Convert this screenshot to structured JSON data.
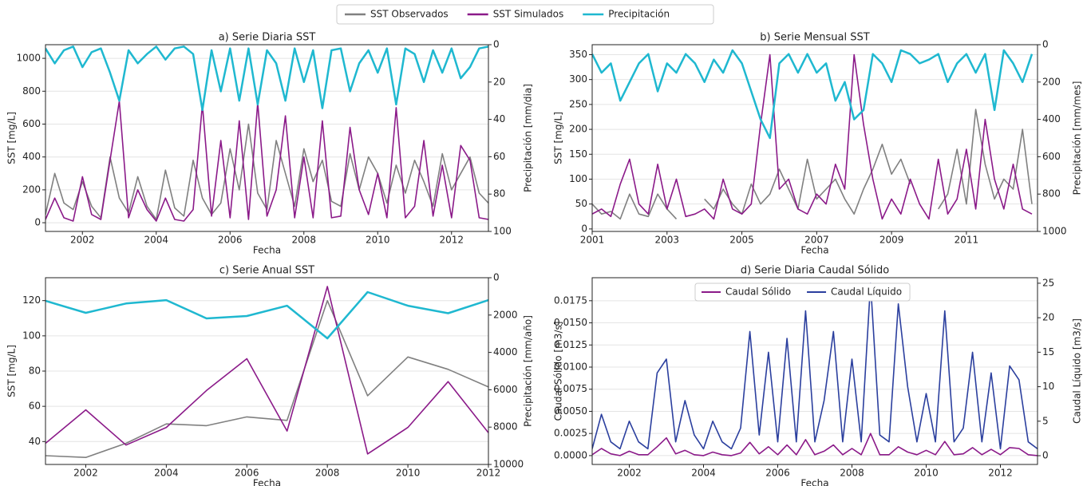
{
  "chart_data": [
    {
      "type": "line",
      "title": "a) Serie Diaria SST",
      "xlabel": "Fecha",
      "ylabel": "SST [mg/L]",
      "y2label": "Precipitación [mm/dia]",
      "x": [
        2001,
        2001.25,
        2001.5,
        2001.75,
        2002,
        2002.25,
        2002.5,
        2002.75,
        2003,
        2003.25,
        2003.5,
        2003.75,
        2004,
        2004.25,
        2004.5,
        2004.75,
        2005,
        2005.25,
        2005.5,
        2005.75,
        2006,
        2006.25,
        2006.5,
        2006.75,
        2007,
        2007.25,
        2007.5,
        2007.75,
        2008,
        2008.25,
        2008.5,
        2008.75,
        2009,
        2009.25,
        2009.5,
        2009.75,
        2010,
        2010.25,
        2010.5,
        2010.75,
        2011,
        2011.25,
        2011.5,
        2011.75,
        2012,
        2012.25,
        2012.5,
        2012.75,
        2013
      ],
      "series": [
        {
          "name": "SST Observados",
          "color": "#808080",
          "values": [
            50,
            300,
            120,
            80,
            250,
            100,
            30,
            400,
            150,
            60,
            280,
            100,
            20,
            320,
            90,
            40,
            380,
            150,
            50,
            120,
            450,
            200,
            600,
            180,
            80,
            500,
            300,
            100,
            450,
            250,
            380,
            130,
            100,
            420,
            200,
            400,
            300,
            120,
            350,
            180,
            380,
            250,
            100,
            420,
            200,
            300,
            400,
            180,
            120
          ]
        },
        {
          "name": "SST Simulados",
          "color": "#8b1a89",
          "values": [
            20,
            150,
            30,
            10,
            280,
            50,
            20,
            380,
            740,
            30,
            200,
            80,
            10,
            150,
            20,
            10,
            80,
            720,
            40,
            500,
            30,
            620,
            20,
            730,
            40,
            200,
            650,
            30,
            400,
            30,
            620,
            30,
            40,
            580,
            200,
            50,
            300,
            30,
            700,
            30,
            100,
            500,
            40,
            350,
            30,
            470,
            380,
            30,
            20
          ]
        },
        {
          "name": "Precipitación",
          "color": "#1fb8d0",
          "axis": "y2",
          "values": [
            2,
            10,
            3,
            1,
            12,
            4,
            2,
            15,
            30,
            3,
            10,
            5,
            1,
            8,
            2,
            1,
            5,
            35,
            3,
            25,
            2,
            30,
            2,
            32,
            3,
            10,
            30,
            2,
            20,
            3,
            34,
            3,
            2,
            25,
            10,
            3,
            15,
            2,
            32,
            2,
            5,
            20,
            3,
            15,
            2,
            18,
            12,
            2,
            1
          ]
        }
      ],
      "xlim": [
        2001,
        2013
      ],
      "xticks": [
        2002,
        2004,
        2006,
        2008,
        2010,
        2012
      ],
      "ylim": [
        -53,
        1083
      ],
      "yticks": [
        0,
        200,
        400,
        600,
        800,
        1000
      ],
      "y2lim": [
        100,
        0
      ],
      "y2ticks": [
        0,
        20,
        40,
        60,
        80,
        100
      ],
      "grid": true
    },
    {
      "type": "line",
      "title": "b) Serie Mensual SST",
      "xlabel": "Fecha",
      "ylabel": "SST [mg/L]",
      "y2label": "Precipitación [mm/mes]",
      "x": [
        2001,
        2001.25,
        2001.5,
        2001.75,
        2002,
        2002.25,
        2002.5,
        2002.75,
        2003,
        2003.25,
        2003.5,
        2003.75,
        2004,
        2004.25,
        2004.5,
        2004.75,
        2005,
        2005.25,
        2005.5,
        2005.75,
        2006,
        2006.25,
        2006.5,
        2006.75,
        2007,
        2007.25,
        2007.5,
        2007.75,
        2008,
        2008.25,
        2008.5,
        2008.75,
        2009,
        2009.25,
        2009.5,
        2009.75,
        2010,
        2010.25,
        2010.5,
        2010.75,
        2011,
        2011.25,
        2011.5,
        2011.75,
        2012,
        2012.25,
        2012.5,
        2012.75
      ],
      "series": [
        {
          "color": "#808080",
          "values": [
            50,
            30,
            35,
            20,
            70,
            30,
            25,
            70,
            40,
            20,
            null,
            null,
            60,
            40,
            80,
            50,
            30,
            90,
            50,
            70,
            120,
            80,
            40,
            140,
            60,
            80,
            100,
            60,
            30,
            80,
            120,
            170,
            110,
            140,
            90,
            null,
            null,
            40,
            70,
            160,
            50,
            240,
            130,
            60,
            100,
            80,
            200,
            50
          ]
        },
        {
          "color": "#8b1a89",
          "values": [
            30,
            40,
            25,
            90,
            140,
            50,
            30,
            130,
            40,
            100,
            25,
            30,
            40,
            20,
            100,
            40,
            30,
            50,
            210,
            350,
            80,
            100,
            40,
            30,
            70,
            50,
            130,
            80,
            350,
            210,
            100,
            20,
            60,
            30,
            100,
            50,
            20,
            140,
            30,
            60,
            160,
            40,
            220,
            100,
            40,
            130,
            40,
            30
          ]
        },
        {
          "color": "#1fb8d0",
          "axis": "y2",
          "values": [
            50,
            150,
            100,
            300,
            200,
            100,
            50,
            250,
            100,
            150,
            50,
            100,
            200,
            80,
            150,
            30,
            100,
            250,
            400,
            500,
            100,
            50,
            150,
            50,
            150,
            100,
            300,
            200,
            400,
            350,
            50,
            100,
            200,
            30,
            50,
            100,
            80,
            50,
            200,
            100,
            50,
            150,
            50,
            350,
            30,
            100,
            200,
            50
          ]
        }
      ],
      "xlim": [
        2001,
        2012.9
      ],
      "xticks": [
        2001,
        2003,
        2005,
        2007,
        2009,
        2011
      ],
      "ylim": [
        -5,
        370
      ],
      "yticks": [
        0,
        50,
        100,
        150,
        200,
        250,
        300,
        350
      ],
      "y2lim": [
        1000,
        0
      ],
      "y2ticks": [
        0,
        200,
        400,
        600,
        800,
        1000
      ],
      "grid": true
    },
    {
      "type": "line",
      "title": "c) Serie Anual SST",
      "xlabel": "Fecha",
      "ylabel": "SST [mg/L]",
      "y2label": "Precipitación [mm/año]",
      "x": [
        2001,
        2002,
        2003,
        2004,
        2005,
        2006,
        2007,
        2008,
        2009,
        2010,
        2011,
        2012
      ],
      "series": [
        {
          "color": "#808080",
          "values": [
            32,
            31,
            39,
            50,
            49,
            54,
            52,
            120,
            66,
            88,
            81,
            71
          ]
        },
        {
          "color": "#8b1a89",
          "values": [
            39,
            58,
            38,
            48,
            69,
            87,
            46,
            128,
            33,
            48,
            74,
            45
          ]
        },
        {
          "color": "#1fb8d0",
          "axis": "y2",
          "values": [
            1240,
            1880,
            1380,
            1200,
            2180,
            2050,
            1500,
            3250,
            770,
            1500,
            1900,
            1200
          ]
        }
      ],
      "xlim": [
        2001,
        2012
      ],
      "xticks": [
        2002,
        2004,
        2006,
        2008,
        2010,
        2012
      ],
      "ylim": [
        27,
        133
      ],
      "yticks": [
        40,
        60,
        80,
        100,
        120
      ],
      "y2lim": [
        10000,
        0
      ],
      "y2ticks": [
        0,
        2000,
        4000,
        6000,
        8000,
        10000
      ],
      "grid": true
    },
    {
      "type": "line",
      "title": "d) Serie Diaria Caudal Sólido",
      "xlabel": "Fecha",
      "ylabel": "Caudal Sólido [m3/s]",
      "y2label": "Caudal Líquido [m3/s]",
      "x": [
        2001,
        2001.25,
        2001.5,
        2001.75,
        2002,
        2002.25,
        2002.5,
        2002.75,
        2003,
        2003.25,
        2003.5,
        2003.75,
        2004,
        2004.25,
        2004.5,
        2004.75,
        2005,
        2005.25,
        2005.5,
        2005.75,
        2006,
        2006.25,
        2006.5,
        2006.75,
        2007,
        2007.25,
        2007.5,
        2007.75,
        2008,
        2008.25,
        2008.5,
        2008.75,
        2009,
        2009.25,
        2009.5,
        2009.75,
        2010,
        2010.25,
        2010.5,
        2010.75,
        2011,
        2011.25,
        2011.5,
        2011.75,
        2012,
        2012.25,
        2012.5,
        2012.75,
        2013
      ],
      "series": [
        {
          "name": "Caudal Sólido",
          "color": "#8b1a89",
          "values": [
            0.0001,
            0.0008,
            0.0002,
            0,
            0.0005,
            0.0001,
            0.0001,
            0.001,
            0.002,
            0.0002,
            0.0006,
            0.0001,
            0,
            0.0004,
            0.0001,
            0,
            0.0003,
            0.0015,
            0.0002,
            0.001,
            0.0001,
            0.0012,
            0.0001,
            0.0018,
            0.0001,
            0.0005,
            0.0012,
            0.0001,
            0.0008,
            0.0001,
            0.0025,
            0.0001,
            0.0001,
            0.001,
            0.0004,
            0.0001,
            0.0006,
            0.0001,
            0.0016,
            0.0001,
            0.0002,
            0.0009,
            0.0001,
            0.0007,
            0.0001,
            0.0009,
            0.0008,
            0.0001,
            0
          ]
        },
        {
          "name": "Caudal Líquido",
          "color": "#2b3f9e",
          "axis": "y2",
          "values": [
            1,
            6,
            2,
            1,
            5,
            2,
            1,
            12,
            14,
            2,
            8,
            3,
            1,
            5,
            2,
            1,
            4,
            18,
            3,
            15,
            2,
            17,
            2,
            21,
            2,
            8,
            18,
            2,
            14,
            2,
            25,
            3,
            2,
            22,
            10,
            2,
            9,
            2,
            21,
            2,
            4,
            15,
            2,
            12,
            1,
            13,
            11,
            2,
            1
          ]
        }
      ],
      "xlim": [
        2001,
        2013
      ],
      "xticks": [
        2002,
        2004,
        2006,
        2008,
        2010,
        2012
      ],
      "ylim": [
        -0.001,
        0.0201
      ],
      "yticks": [
        {
          "value": 0,
          "label": "0.0000"
        },
        {
          "value": 0.0025,
          "label": "0.0025"
        },
        {
          "value": 0.005,
          "label": "0.0050"
        },
        {
          "value": 0.0075,
          "label": "0.0075"
        },
        {
          "value": 0.01,
          "label": "0.0100"
        },
        {
          "value": 0.0125,
          "label": "0.0125"
        },
        {
          "value": 0.015,
          "label": "0.0150"
        },
        {
          "value": 0.0175,
          "label": "0.0175"
        }
      ],
      "y2lim": [
        -1.27,
        25.8
      ],
      "y2ticks": [
        0,
        5,
        10,
        15,
        20,
        25
      ],
      "grid": true,
      "legend": "upper center"
    }
  ]
}
